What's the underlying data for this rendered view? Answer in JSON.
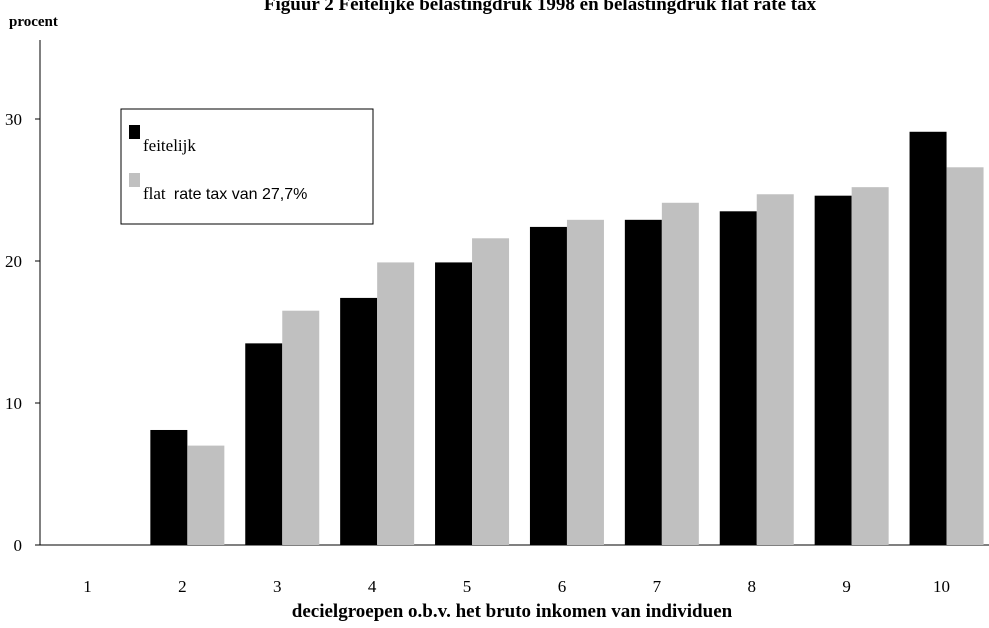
{
  "chart_data": {
    "type": "bar",
    "title": "Figuur 2 Feitelijke belastingdruk 1998 en belastingdruk flat rate tax",
    "ylabel": "procent",
    "xlabel": "decielgroepen o.b.v. het bruto inkomen van individuen",
    "categories": [
      "1",
      "2",
      "3",
      "4",
      "5",
      "6",
      "7",
      "8",
      "9",
      "10"
    ],
    "ylim": [
      0,
      33
    ],
    "yticks": [
      "0",
      "10",
      "20",
      "30"
    ],
    "grid": false,
    "legend_position": "upper-left",
    "series": [
      {
        "name": "feitelijk",
        "color": "#000000",
        "values": [
          0,
          8.1,
          14.2,
          17.4,
          19.9,
          22.4,
          22.9,
          23.5,
          24.6,
          29.1
        ]
      },
      {
        "name_part1": "flat",
        "name_part2": "rate tax van 27,7%",
        "color": "#c0c0c0",
        "values": [
          0,
          7.0,
          16.5,
          19.9,
          21.6,
          22.9,
          24.1,
          24.7,
          25.2,
          26.6
        ]
      }
    ]
  }
}
